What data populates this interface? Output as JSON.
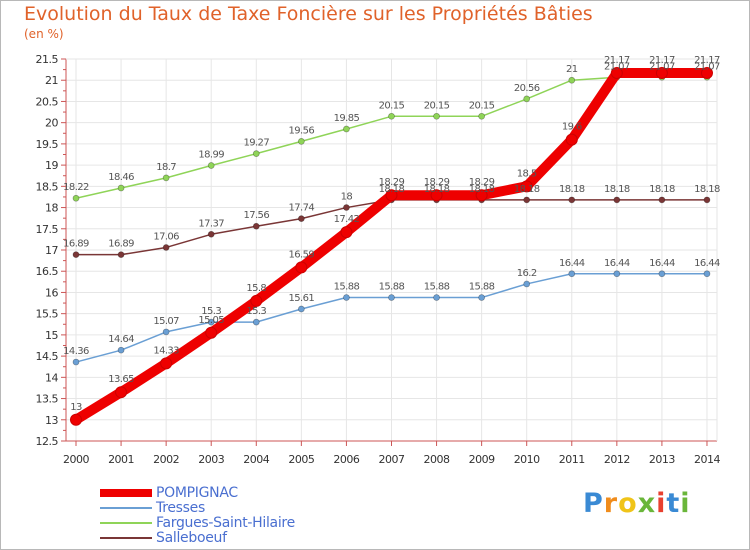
{
  "header": {
    "title": "Evolution du Taux de Taxe Foncière sur les Propriétés Bâties",
    "unit": "(en %)"
  },
  "logo": {
    "letters": [
      "P",
      "r",
      "o",
      "x",
      "i",
      "t",
      "i"
    ],
    "colors": [
      "#3a8ad4",
      "#f08c1c",
      "#f0c419",
      "#6ab63a",
      "#e8402f",
      "#3a8ad4",
      "#6ab63a"
    ]
  },
  "chart_data": {
    "type": "line",
    "title": "Evolution du Taux de Taxe Foncière sur les Propriétés Bâties",
    "ylabel": "(en %)",
    "x": [
      "2000",
      "2001",
      "2002",
      "2003",
      "2004",
      "2005",
      "2006",
      "2007",
      "2008",
      "2009",
      "2010",
      "2011",
      "2012",
      "2013",
      "2014"
    ],
    "ylim": [
      12.5,
      21.5
    ],
    "yticks": [
      "12.5",
      "13",
      "13.5",
      "14",
      "14.5",
      "15",
      "15.5",
      "16",
      "16.5",
      "17",
      "17.5",
      "18",
      "18.5",
      "19",
      "19.5",
      "20",
      "20.5",
      "21",
      "21.5"
    ],
    "grid": true,
    "legend_position": "bottom-left",
    "series": [
      {
        "name": "POMPIGNAC",
        "color": "#ee0000",
        "values": [
          13,
          13.65,
          14.33,
          15.05,
          15.8,
          16.59,
          17.42,
          18.29,
          18.29,
          18.29,
          18.5,
          19.6,
          21.17,
          21.17,
          21.17
        ],
        "labels": [
          "13",
          "13.65",
          "14.33",
          "15.05",
          "15.8",
          "16.59",
          "17.42",
          "18.29",
          "18.29",
          "18.29",
          "18.5",
          "19.6",
          "21.17",
          "21.17",
          "21.17"
        ]
      },
      {
        "name": "Tresses",
        "color": "#6a9fd4",
        "values": [
          14.36,
          14.64,
          15.07,
          15.3,
          15.3,
          15.61,
          15.88,
          15.88,
          15.88,
          15.88,
          16.2,
          16.44,
          16.44,
          16.44,
          16.44
        ],
        "labels": [
          "14.36",
          "14.64",
          "15.07",
          "15.3",
          "15.3",
          "15.61",
          "15.88",
          "15.88",
          "15.88",
          "15.88",
          "16.2",
          "16.44",
          "16.44",
          "16.44",
          "16.44"
        ]
      },
      {
        "name": "Fargues-Saint-Hilaire",
        "color": "#8fd458",
        "values": [
          18.22,
          18.46,
          18.7,
          18.99,
          19.27,
          19.56,
          19.85,
          20.15,
          20.15,
          20.15,
          20.56,
          21,
          21.07,
          21.07,
          21.07
        ],
        "labels": [
          "18.22",
          "18.46",
          "18.7",
          "18.99",
          "19.27",
          "19.56",
          "19.85",
          "20.15",
          "20.15",
          "20.15",
          "20.56",
          "21",
          "21.07",
          "21.07",
          "21.07"
        ]
      },
      {
        "name": "Salleboeuf",
        "color": "#7a3636",
        "values": [
          16.89,
          16.89,
          17.06,
          17.37,
          17.56,
          17.74,
          18,
          18.18,
          18.18,
          18.18,
          18.18,
          18.18,
          18.18,
          18.18,
          18.18
        ],
        "labels": [
          "16.89",
          "16.89",
          "17.06",
          "17.37",
          "17.56",
          "17.74",
          "18",
          "18.18",
          "18.18",
          "18.18",
          "18.18",
          "18.18",
          "18.18",
          "18.18",
          "18.18"
        ]
      }
    ]
  }
}
